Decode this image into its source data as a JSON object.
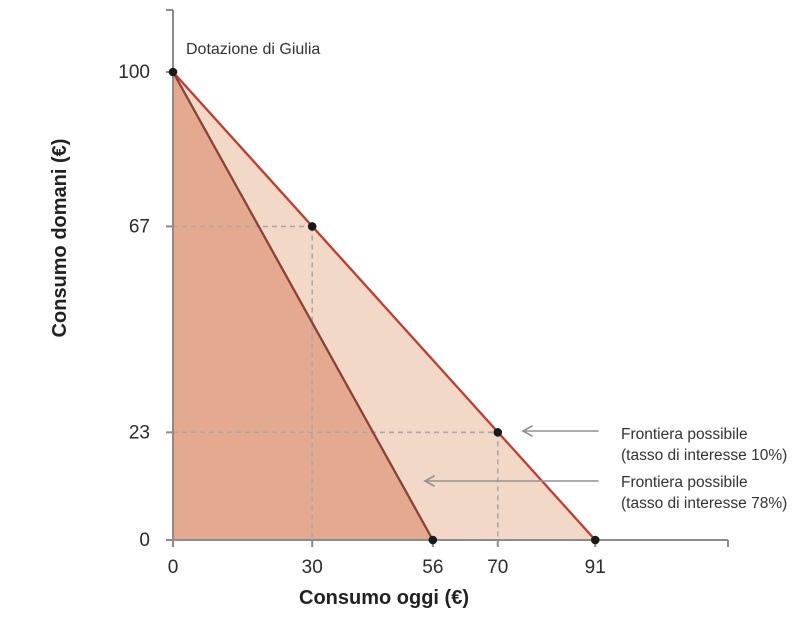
{
  "figure": {
    "background": "#ffffff",
    "endowment": {
      "label": "Dotazione di Giulia",
      "point": [
        0,
        100
      ]
    }
  },
  "chart_data": {
    "type": "area",
    "title": "",
    "xlabel": "Consumo oggi (€)",
    "ylabel": "Consumo domani (€)",
    "xlim": [
      0,
      120
    ],
    "ylim": [
      0,
      113
    ],
    "grid": "off",
    "legend_position": "right-annotations",
    "x_ticks": [
      0,
      30,
      56,
      70,
      91
    ],
    "y_ticks": [
      0,
      23,
      67,
      100
    ],
    "series": [
      {
        "name": "Frontiera possibile (tasso di interesse 10%)",
        "interest_rate": "10%",
        "points": [
          [
            0,
            100
          ],
          [
            91,
            0
          ]
        ],
        "line_color": "#c63a2e",
        "fill_color": "#f2d8c7"
      },
      {
        "name": "Frontiera possibile (tasso di interesse 78%)",
        "interest_rate": "78%",
        "points": [
          [
            0,
            100
          ],
          [
            56,
            0
          ]
        ],
        "line_color": "#8e4133",
        "fill_color": "#e3aa90"
      }
    ],
    "markers": [
      [
        0,
        100
      ],
      [
        30,
        67
      ],
      [
        70,
        23
      ],
      [
        56,
        0
      ],
      [
        91,
        0
      ]
    ],
    "dashed_guides": [
      [
        30,
        67
      ],
      [
        70,
        23
      ]
    ],
    "annotations": [
      {
        "lines": [
          "Frontiera possibile",
          "(tasso di interesse 10%)"
        ],
        "points_to": [
          70,
          23
        ]
      },
      {
        "lines": [
          "Frontiera possibile",
          "(tasso di interesse 78%)"
        ],
        "points_to": "frontier-78-line"
      }
    ],
    "colors": {
      "axis": "#8c8c8c",
      "marker": "#1a1a1a",
      "dashed_guide": "#a9a9a9",
      "arrow": "#929292",
      "tick_text": "#2b2b2b",
      "title_text": "#222222",
      "annotation_text": "#333333"
    }
  }
}
